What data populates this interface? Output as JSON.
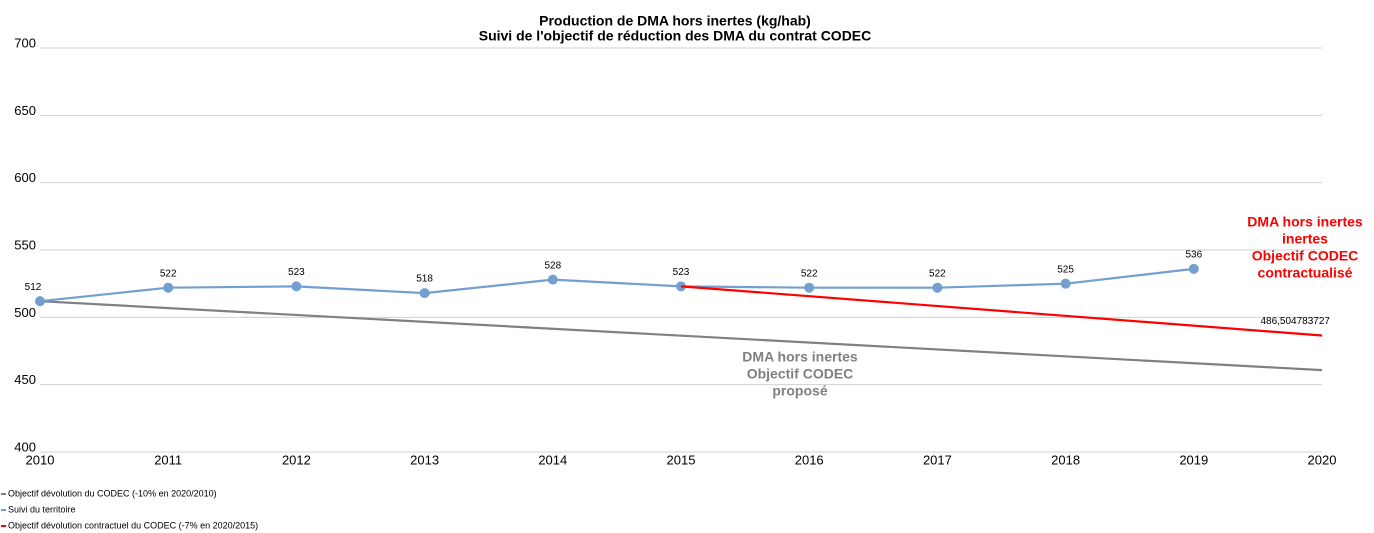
{
  "chart_data": {
    "type": "line",
    "title": [
      "Production de DMA hors inertes (kg/hab)",
      "Suivi de l'objectif de réduction des DMA du contrat CODEC"
    ],
    "xlim": [
      2010,
      2020
    ],
    "xticks": [
      2010,
      2011,
      2012,
      2013,
      2014,
      2015,
      2016,
      2017,
      2018,
      2019,
      2020
    ],
    "ylim": [
      400,
      700
    ],
    "yticks": [
      400,
      450,
      500,
      550,
      600,
      650,
      700
    ],
    "grid": true,
    "legend": "bottom-left",
    "series": [
      {
        "name": "Objectif dévolution du CODEC (-10% en 2020/2010)",
        "color": "#808080",
        "x": [
          2010,
          2020
        ],
        "values": [
          512,
          460.8
        ]
      },
      {
        "name": "Suivi du territoire",
        "color": "#729fcf",
        "markers": true,
        "x": [
          2010,
          2011,
          2012,
          2013,
          2014,
          2015,
          2016,
          2017,
          2018,
          2019
        ],
        "values": [
          512,
          522,
          523,
          518,
          528,
          523,
          522,
          522,
          525,
          536
        ],
        "value_labels": [
          "512",
          "522",
          "523",
          "518",
          "528",
          "523",
          "522",
          "522",
          "525",
          "536"
        ]
      },
      {
        "name": "Objectif dévolution contractuel du CODEC (-7% en 2020/2015)",
        "color": "#ff0000",
        "x": [
          2015,
          2020
        ],
        "values": [
          523,
          486.504783727
        ],
        "value_labels": [
          null,
          "486,504783727"
        ]
      }
    ],
    "annotations": [
      {
        "lines": [
          "DMA hors inertes",
          "Objectif CODEC",
          "proposé"
        ],
        "color": "#808080"
      },
      {
        "lines": [
          "DMA hors inertes",
          "inertes",
          "Objectif CODEC",
          "contractualisé"
        ],
        "color": "#ff0000"
      }
    ]
  }
}
